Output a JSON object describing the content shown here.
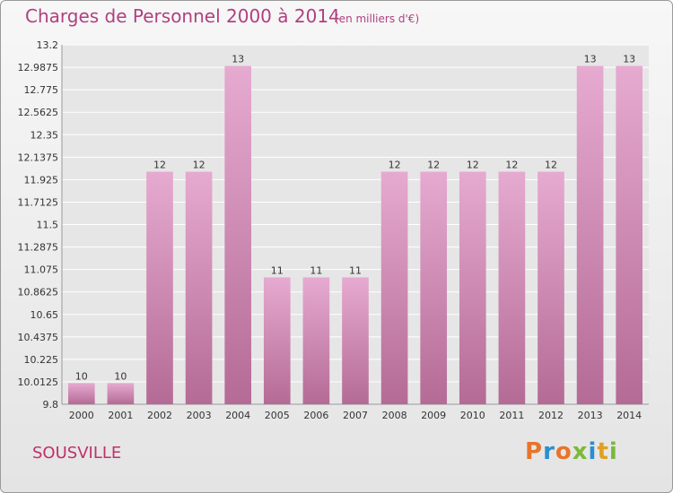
{
  "title": "Charges de Personnel 2000 à 2014",
  "subtitle": "(en milliers d'€)",
  "place": "SOUSVILLE",
  "logo": {
    "text": "Proxiti",
    "colors": [
      "#e8742a",
      "#2a8fd0",
      "#e8742a",
      "#7cb83a",
      "#2a8fd0",
      "#e0a020",
      "#7cb83a"
    ]
  },
  "colors": {
    "bar": "#d98ab8",
    "bar_light": "#e6aad0",
    "bar_dark": "#b46b95",
    "title": "#b04080",
    "grid": "#ffffff"
  },
  "chart_data": {
    "type": "bar",
    "categories": [
      "2000",
      "2001",
      "2002",
      "2003",
      "2004",
      "2005",
      "2006",
      "2007",
      "2008",
      "2009",
      "2010",
      "2011",
      "2012",
      "2013",
      "2014"
    ],
    "values": [
      10,
      10,
      12,
      12,
      13,
      11,
      11,
      11,
      12,
      12,
      12,
      12,
      12,
      13,
      13
    ],
    "data_labels": [
      "10",
      "10",
      "12",
      "12",
      "13",
      "11",
      "11",
      "11",
      "12",
      "12",
      "12",
      "12",
      "12",
      "13",
      "13"
    ],
    "ylim": [
      9.8,
      13.2
    ],
    "yticks": [
      9.8,
      10.0125,
      10.225,
      10.4375,
      10.65,
      10.8625,
      11.075,
      11.2875,
      11.5,
      11.7125,
      11.925,
      12.1375,
      12.35,
      12.5625,
      12.775,
      12.9875,
      13.2
    ],
    "ytick_labels": [
      "9.8",
      "10.0125",
      "10.225",
      "10.4375",
      "10.65",
      "10.8625",
      "11.075",
      "11.2875",
      "11.5",
      "11.7125",
      "11.925",
      "12.1375",
      "12.35",
      "12.5625",
      "12.775",
      "12.9875",
      "13.2"
    ],
    "grid": true
  }
}
